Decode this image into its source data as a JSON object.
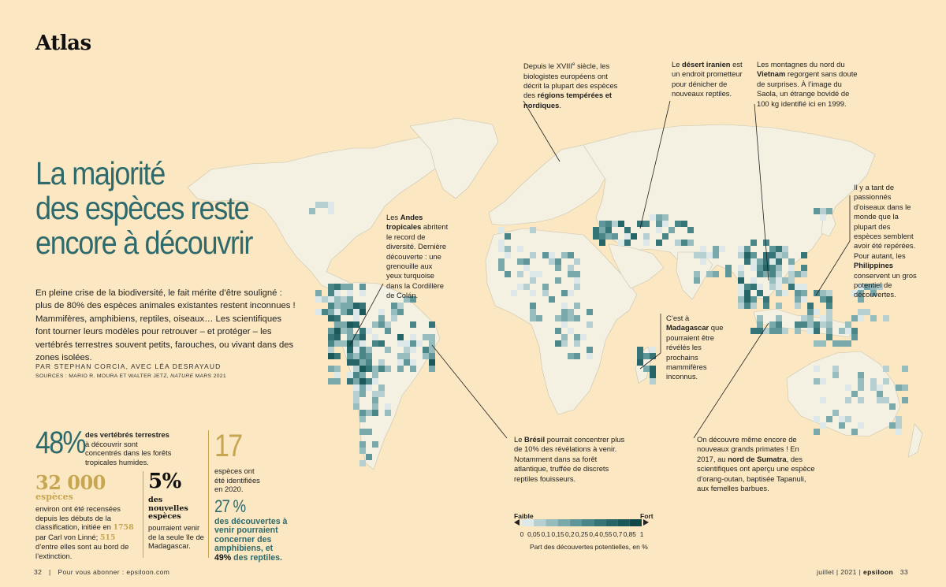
{
  "header": {
    "section": "Atlas"
  },
  "headline": [
    "La majorité",
    "des espèces reste",
    "encore à découvrir"
  ],
  "intro": "En pleine crise de la biodiversité, le fait mérite d’être souligné : plus de 80% des espèces animales existantes restent inconnues ! Mammifères, amphibiens, reptiles, oiseaux… Les scientifiques font tourner leurs modèles pour retrouver – et protéger – les vertébrés terrestres souvent petits, farouches, ou vivant dans des zones isolées.",
  "byline": "PAR STEPHAN CORCIA, AVEC LÉA DESRAYAUD",
  "sources": {
    "prefix": "SOURCES : MARIO R. MOURA ET WALTER JETZ, ",
    "journal": "NATURE",
    "suffix": " MARS 2021"
  },
  "stats": {
    "s48": {
      "value": "48%",
      "bold": "des vertébrés terrestres",
      "text": "à découvrir sont concentrés dans les forêts tropicales humides."
    },
    "s32000": {
      "value": "32 000",
      "unit": "espèces",
      "text_1": "environ ont été recensées depuis les débuts de la classification, initiée en ",
      "year": "1758",
      "text_2": " par Carl von Linné; ",
      "count": "515",
      "text_3": " d’entre elles sont au bord de l’extinction."
    },
    "s5": {
      "value": "5%",
      "bold": "des nouvelles espèces",
      "text": "pourraient venir de la seule île de Madagascar."
    },
    "s17": {
      "value": "17",
      "text": "espèces ont été identifiées en 2020."
    },
    "s27": {
      "value": "27 %",
      "text_1": "des découvertes à venir pourraient concerner des amphibiens, et ",
      "pct": "49%",
      "text_2": " des reptiles."
    }
  },
  "annotations": {
    "europe": {
      "t1": "Depuis le XVIII",
      "sup": "e",
      "t2": " siècle, les biologistes européens ont décrit la plupart des espèces des ",
      "b": "régions tempérées et nordiques",
      "t3": "."
    },
    "iran": {
      "t1": "Le ",
      "b": "désert iranien",
      "t2": " est un endroit prometteur pour dénicher de nouveaux reptiles."
    },
    "vietnam": {
      "t1": "Les montagnes du nord du ",
      "b": "Vietnam",
      "t2": " regorgent sans doute de surprises. À l’image du Saola, un étrange bovidé de 100 kg identifié ici en 1999."
    },
    "philippines": {
      "t1": "Il y a tant de passionnés d’oiseaux dans le monde que la plupart des espèces semblent avoir été repérées. Pour autant, les ",
      "b": "Philippines",
      "t2": " conservent un gros potentiel de découvertes."
    },
    "andes": {
      "t1": "Les ",
      "b": "Andes tropicales",
      "t2": " abritent le record de diversité. Dernière découverte : une grenouille aux yeux turquoise dans la Cordillère de Colán."
    },
    "madagascar": {
      "t1": "C’est à ",
      "b": "Madagascar",
      "t2": " que pourraient être révélés les prochains mammifères inconnus."
    },
    "bresil": {
      "t1": "Le ",
      "b": "Brésil",
      "t2": " pourrait concentrer plus de 10% des révélations à venir. Notamment dans sa forêt atlantique, truffée de discrets reptiles fouisseurs."
    },
    "sumatra": {
      "t1": "On découvre même encore de nouveaux grands primates ! En 2017, au ",
      "b": "nord de Sumatra",
      "t2": ", des scientifiques ont aperçu une espèce d’orang-outan, baptisée Tapanuli, aux femelles barbues."
    }
  },
  "legend": {
    "low": "Faible",
    "high": "Fort",
    "ticks": [
      "0",
      "0,05",
      "0,1",
      "0,15",
      "0,2",
      "0,25",
      "0,4",
      "0,55",
      "0,7",
      "0,85",
      "1"
    ],
    "caption": "Part des découvertes potentielles, en %",
    "colors": [
      "#dde8e8",
      "#b6d0d1",
      "#97bcbe",
      "#7aa9ac",
      "#5f9699",
      "#4a8588",
      "#357477",
      "#256567",
      "#1a5758",
      "#104749"
    ]
  },
  "footer": {
    "left_page": "32",
    "left_text": "Pour vous abonner : epsiloon.com",
    "right_date": "juillet | 2021 |",
    "right_brand": "epsiloon",
    "right_page": "33"
  },
  "colors": {
    "teal": "#2e6a6c",
    "gold": "#c7a652",
    "land": "#f4f1e2",
    "background": "#fbe7c1"
  }
}
